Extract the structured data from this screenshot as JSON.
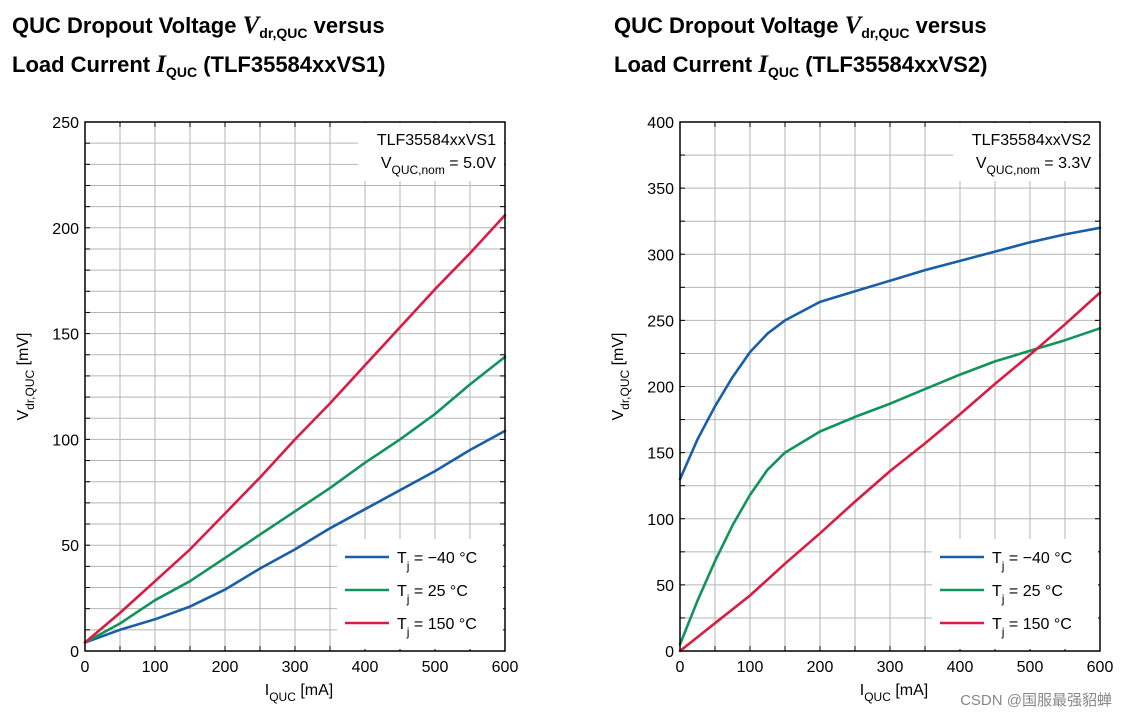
{
  "titles": {
    "left": {
      "line1_pre": "QUC Dropout Voltage ",
      "line1_sym": "V",
      "line1_sub": "dr,QUC",
      "line1_post": " versus",
      "line2_pre": "Load Current ",
      "line2_sym": "I",
      "line2_sub": "QUC",
      "line2_post": " (TLF35584xxVS1)"
    },
    "right": {
      "line1_pre": "QUC Dropout Voltage ",
      "line1_sym": "V",
      "line1_sub": "dr,QUC",
      "line1_post": " versus",
      "line2_pre": "Load Current ",
      "line2_sym": "I",
      "line2_sub": "QUC",
      "line2_post": " (TLF35584xxVS2)"
    }
  },
  "watermark": "CSDN @国服最强貂蝉",
  "colors": {
    "minus40": "#1a5ea8",
    "plus25": "#12935a",
    "plus150": "#d81c44",
    "grid": "#b5b5b5"
  },
  "chart_data": [
    {
      "type": "line",
      "variant": "TLF35584xxVS1",
      "annotation": {
        "line1": "TLF35584xxVS1",
        "line2_main": "V",
        "line2_sub": "QUC,nom",
        "line2_tail": " = 5.0V"
      },
      "xlabel": {
        "main": "I",
        "sub": "QUC",
        "tail": " [mA]"
      },
      "ylabel": {
        "main": "V",
        "sub": "dr,QUC",
        "tail": " [mV]"
      },
      "xlim": [
        0,
        600
      ],
      "ylim": [
        0,
        250
      ],
      "xticks": [
        0,
        100,
        200,
        300,
        400,
        500,
        600
      ],
      "yticks": [
        0,
        50,
        100,
        150,
        200,
        250
      ],
      "grid": true,
      "legend": "bottom-right",
      "series": [
        {
          "name": "Tj = −40 °C",
          "legend_main": "T",
          "legend_sub": "j",
          "legend_tail": " = −40 °C",
          "color_key": "minus40",
          "x": [
            0,
            50,
            100,
            150,
            200,
            250,
            300,
            350,
            400,
            450,
            500,
            550,
            600
          ],
          "y": [
            4,
            10,
            15,
            21,
            29,
            39,
            48,
            58,
            67,
            76,
            85,
            95,
            104
          ]
        },
        {
          "name": "Tj = 25 °C",
          "legend_main": "T",
          "legend_sub": "j",
          "legend_tail": " = 25 °C",
          "color_key": "plus25",
          "x": [
            0,
            50,
            100,
            150,
            200,
            250,
            300,
            350,
            400,
            450,
            500,
            550,
            600
          ],
          "y": [
            4,
            13,
            24,
            33,
            44,
            55,
            66,
            77,
            89,
            100,
            112,
            126,
            139
          ]
        },
        {
          "name": "Tj = 150 °C",
          "legend_main": "T",
          "legend_sub": "j",
          "legend_tail": " = 150 °C",
          "color_key": "plus150",
          "x": [
            0,
            50,
            100,
            150,
            200,
            250,
            300,
            350,
            400,
            450,
            500,
            550,
            600
          ],
          "y": [
            4,
            18,
            33,
            48,
            65,
            82,
            100,
            117,
            135,
            153,
            171,
            188,
            206
          ]
        }
      ]
    },
    {
      "type": "line",
      "variant": "TLF35584xxVS2",
      "annotation": {
        "line1": "TLF35584xxVS2",
        "line2_main": "V",
        "line2_sub": "QUC,nom",
        "line2_tail": " = 3.3V"
      },
      "xlabel": {
        "main": "I",
        "sub": "QUC",
        "tail": " [mA]"
      },
      "ylabel": {
        "main": "V",
        "sub": "dr,QUC",
        "tail": " [mV]"
      },
      "xlim": [
        0,
        600
      ],
      "ylim": [
        0,
        400
      ],
      "xticks": [
        0,
        100,
        200,
        300,
        400,
        500,
        600
      ],
      "yticks": [
        0,
        50,
        100,
        150,
        200,
        250,
        300,
        350,
        400
      ],
      "grid": true,
      "legend": "bottom-right",
      "series": [
        {
          "name": "Tj = −40 °C",
          "legend_main": "T",
          "legend_sub": "j",
          "legend_tail": " = −40 °C",
          "color_key": "minus40",
          "x": [
            0,
            25,
            50,
            75,
            100,
            125,
            150,
            200,
            250,
            300,
            350,
            400,
            450,
            500,
            550,
            600
          ],
          "y": [
            130,
            160,
            185,
            207,
            226,
            240,
            250,
            264,
            272,
            280,
            288,
            295,
            302,
            309,
            315,
            320
          ]
        },
        {
          "name": "Tj = 25 °C",
          "legend_main": "T",
          "legend_sub": "j",
          "legend_tail": " = 25 °C",
          "color_key": "plus25",
          "x": [
            0,
            25,
            50,
            75,
            100,
            125,
            150,
            200,
            250,
            300,
            350,
            400,
            450,
            500,
            550,
            600
          ],
          "y": [
            5,
            38,
            68,
            95,
            118,
            137,
            150,
            166,
            177,
            187,
            198,
            209,
            219,
            227,
            235,
            244
          ]
        },
        {
          "name": "Tj = 150 °C",
          "legend_main": "T",
          "legend_sub": "j",
          "legend_tail": " = 150 °C",
          "color_key": "plus150",
          "x": [
            0,
            50,
            100,
            150,
            200,
            250,
            300,
            350,
            400,
            450,
            500,
            550,
            600
          ],
          "y": [
            0,
            21,
            42,
            66,
            89,
            113,
            136,
            157,
            179,
            202,
            224,
            247,
            271
          ]
        }
      ]
    }
  ]
}
